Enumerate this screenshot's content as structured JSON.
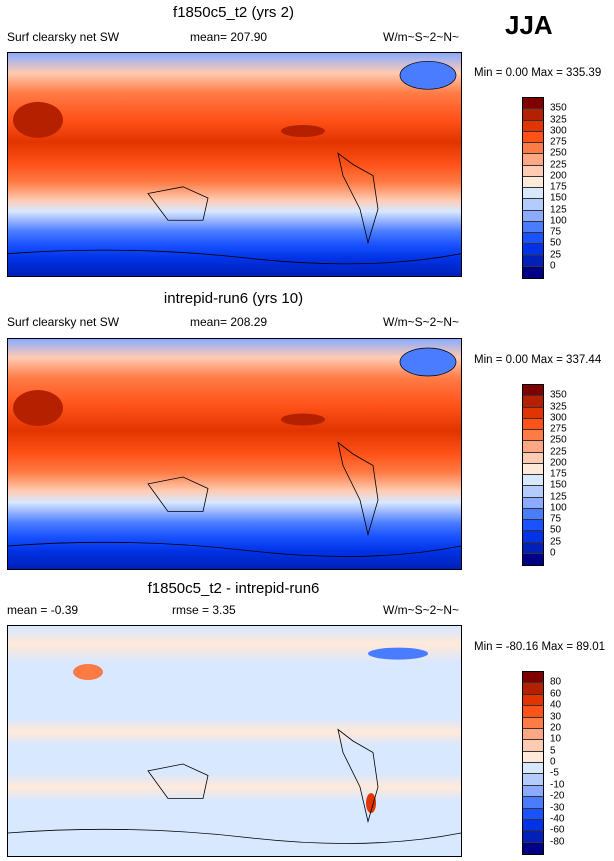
{
  "label": "JJA",
  "panels": [
    {
      "title": "f1850c5_t2 (yrs 2)",
      "left": "Surf clearsky net SW",
      "center": "mean= 207.90",
      "right": "W/m~S~2~N~",
      "minmax": "Min =   0.00 Max = 335.39"
    },
    {
      "title": "intrepid-run6 (yrs 10)",
      "left": "Surf clearsky net SW",
      "center": "mean= 208.29",
      "right": "W/m~S~2~N~",
      "minmax": "Min =   0.00 Max = 337.44"
    },
    {
      "title": "f1850c5_t2 - intrepid-run6",
      "left": "mean =  -0.39",
      "center": "rmse =   3.35",
      "right": "W/m~S~2~N~",
      "minmax": "Min = -80.16 Max =  89.01"
    }
  ],
  "colorbar": {
    "colors": [
      "#7f0000",
      "#b52100",
      "#e23400",
      "#ff5219",
      "#ff7b45",
      "#ffa783",
      "#ffcbb2",
      "#ffe9d9",
      "#d8e8ff",
      "#b3cbff",
      "#8aabff",
      "#4a7cff",
      "#1a52ff",
      "#0033e6",
      "#0020b8",
      "#000086"
    ],
    "levels_abs": [
      "350",
      "325",
      "300",
      "275",
      "250",
      "225",
      "200",
      "175",
      "150",
      "125",
      "100",
      "75",
      "50",
      "25",
      "0"
    ],
    "levels_diff": [
      "80",
      "60",
      "40",
      "30",
      "20",
      "10",
      "5",
      "0",
      "-5",
      "-10",
      "-20",
      "-30",
      "-40",
      "-60",
      "-80"
    ]
  }
}
